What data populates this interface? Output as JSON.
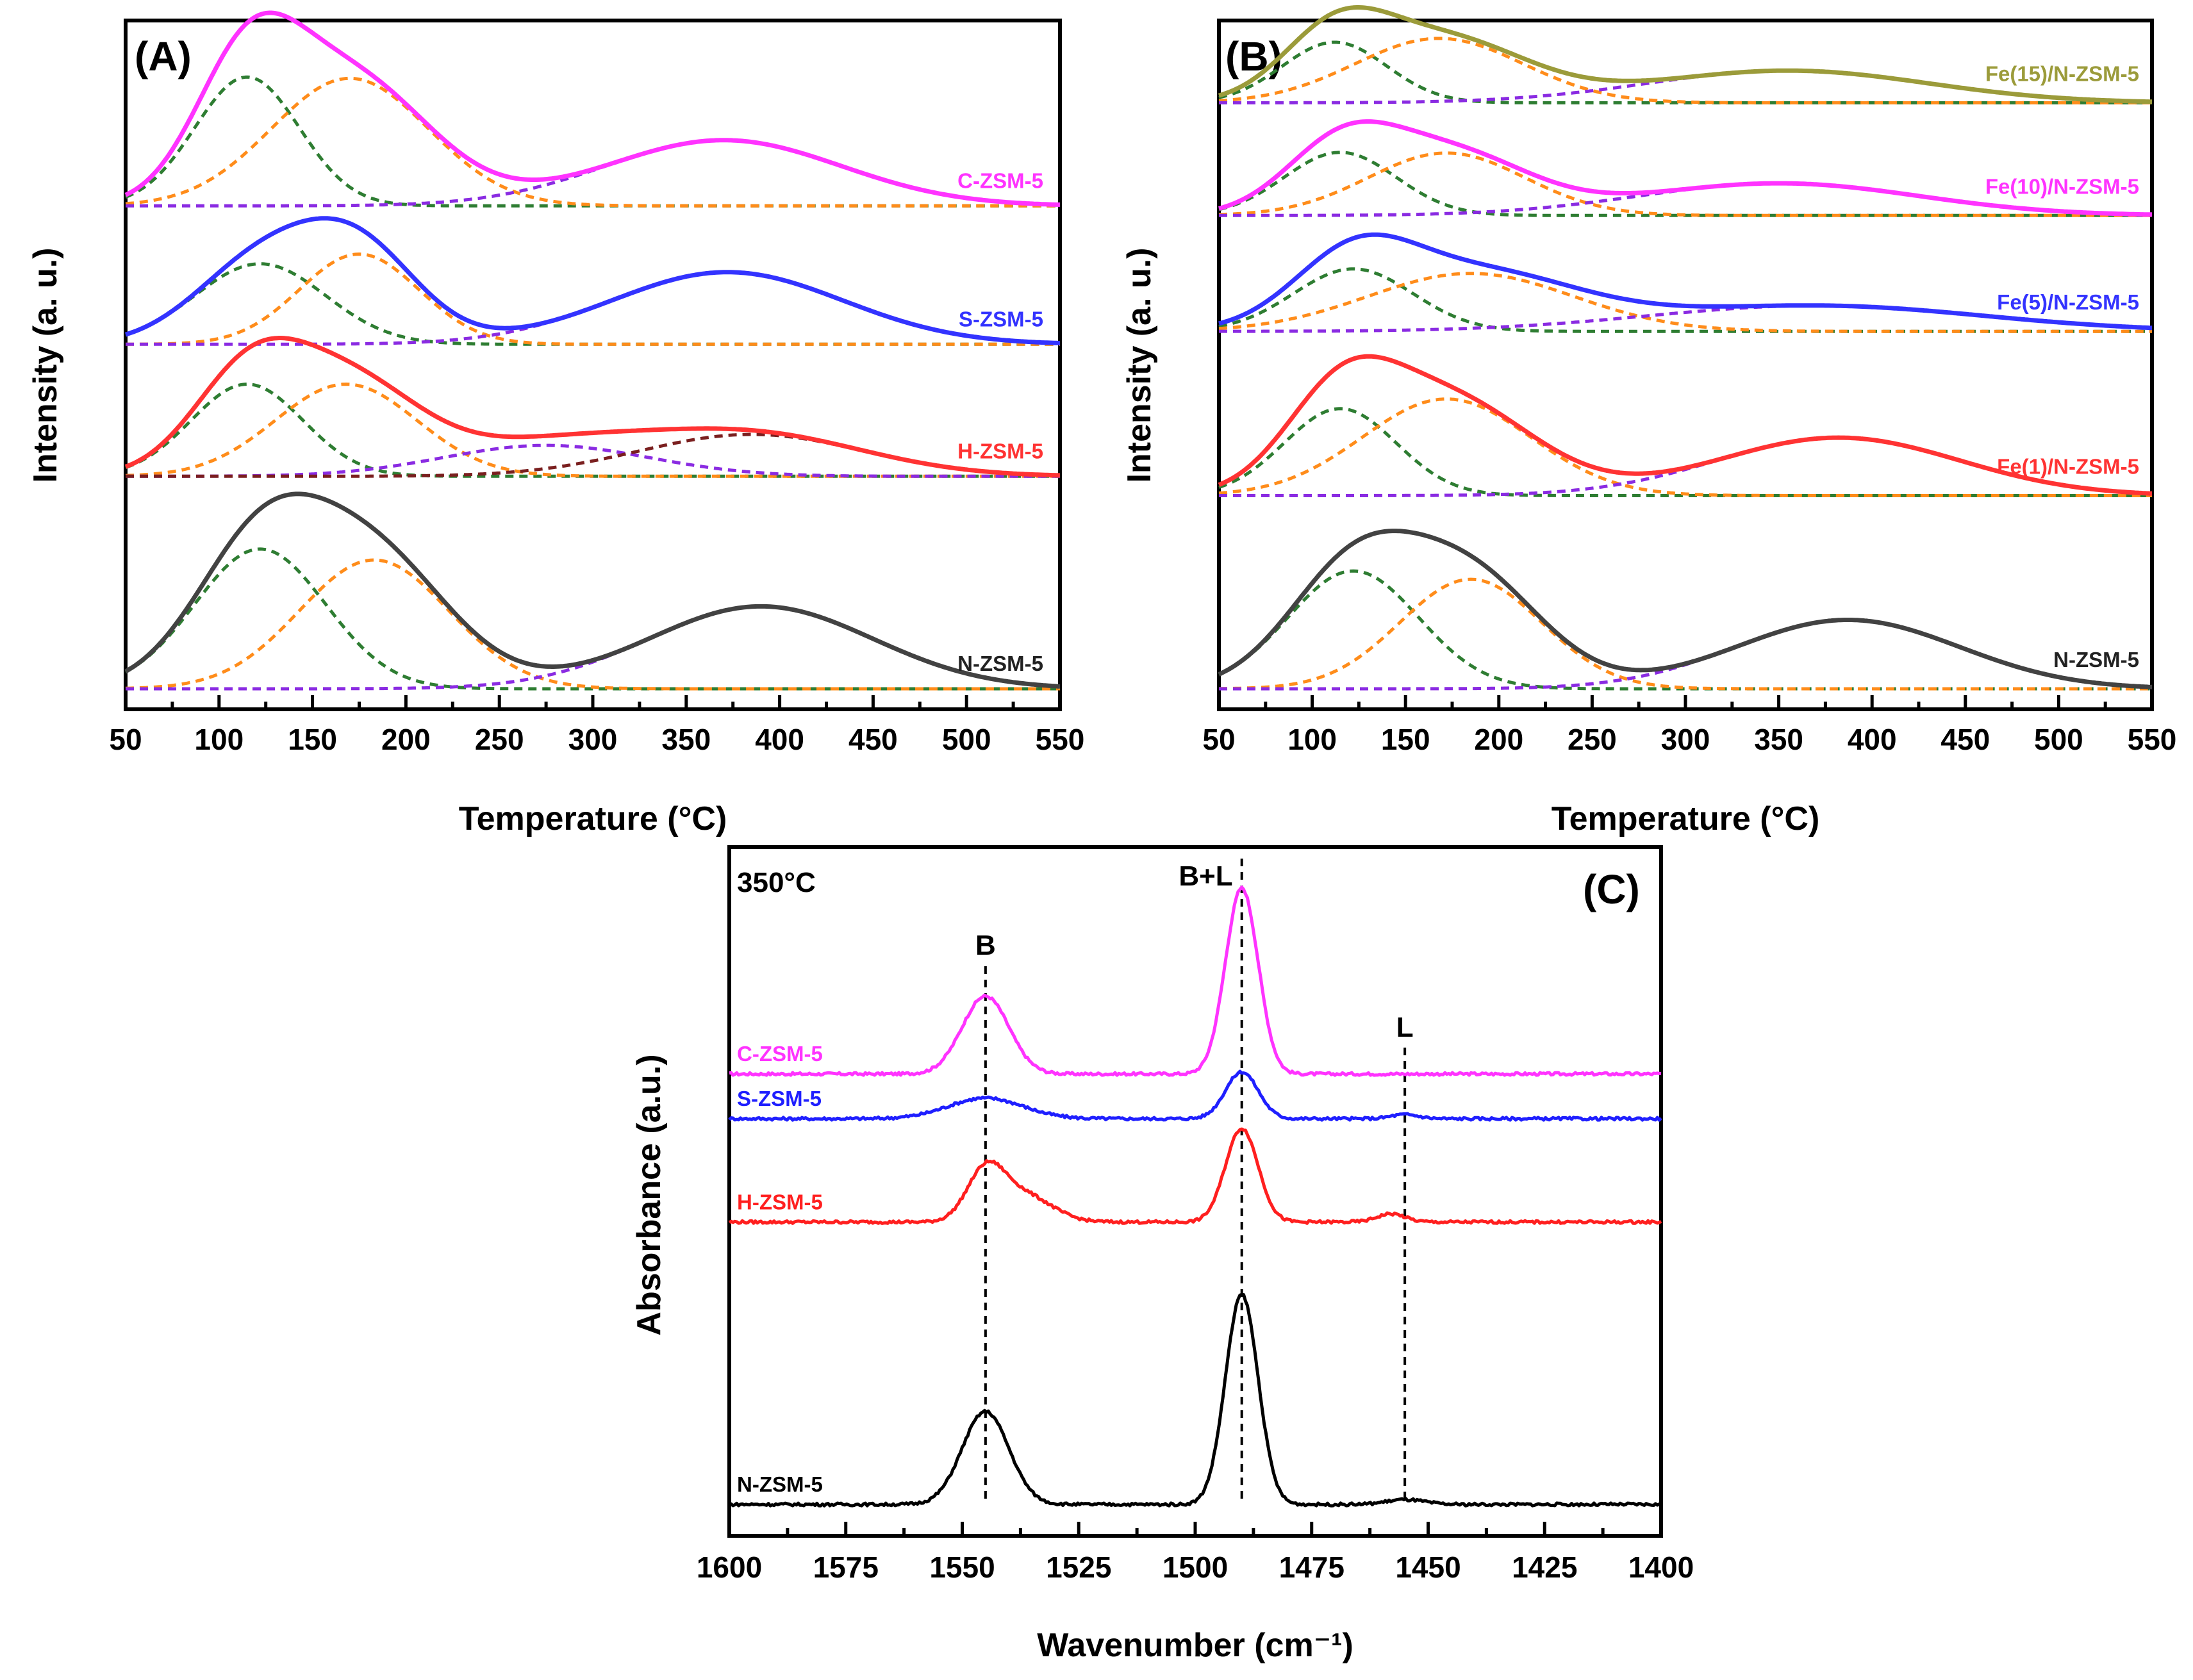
{
  "chart_data": [
    {
      "panel": "(A)",
      "type": "line",
      "xlabel": "Temperature (°C)",
      "ylabel": "Intensity (a. u.)",
      "xlim": [
        50,
        550
      ],
      "xticks": [
        "50",
        "100",
        "150",
        "200",
        "250",
        "300",
        "350",
        "400",
        "450",
        "500",
        "550"
      ],
      "series": [
        {
          "name": "C-ZSM-5",
          "color": "#ff33ff",
          "baseline": 0.75,
          "peaks": [
            {
              "center": 115,
              "height": 0.2,
              "width": 28,
              "color": "#2e7d32"
            },
            {
              "center": 170,
              "height": 0.198,
              "width": 42,
              "color": "#ff8c1a"
            },
            {
              "center": 370,
              "height": 0.102,
              "width": 63,
              "color": "#8a2be2"
            }
          ]
        },
        {
          "name": "S-ZSM-5",
          "color": "#3333ff",
          "baseline": 0.535,
          "peaks": [
            {
              "center": 122,
              "height": 0.125,
              "width": 35,
              "color": "#2e7d32"
            },
            {
              "center": 175,
              "height": 0.14,
              "width": 32,
              "color": "#ff8c1a"
            },
            {
              "center": 372,
              "height": 0.112,
              "width": 62,
              "color": "#8a2be2"
            }
          ]
        },
        {
          "name": "H-ZSM-5",
          "color": "#ff3333",
          "baseline": 0.33,
          "peaks": [
            {
              "center": 115,
              "height": 0.143,
              "width": 30,
              "color": "#2e7d32"
            },
            {
              "center": 168,
              "height": 0.143,
              "width": 38,
              "color": "#ff8c1a"
            },
            {
              "center": 275,
              "height": 0.048,
              "width": 55,
              "color": "#8a2be2"
            },
            {
              "center": 385,
              "height": 0.065,
              "width": 60,
              "color": "#7a1f1f"
            }
          ]
        },
        {
          "name": "N-ZSM-5",
          "color": "#424242",
          "baseline": 0.0,
          "peaks": [
            {
              "center": 122,
              "height": 0.217,
              "width": 35,
              "color": "#2e7d32"
            },
            {
              "center": 183,
              "height": 0.2,
              "width": 40,
              "color": "#ff8c1a"
            },
            {
              "center": 390,
              "height": 0.128,
              "width": 60,
              "color": "#8a2be2"
            }
          ]
        }
      ]
    },
    {
      "panel": "(B)",
      "type": "line",
      "xlabel": "Temperature (°C)",
      "ylabel": "Intensity (a. u.)",
      "xlim": [
        50,
        550
      ],
      "xticks": [
        "50",
        "100",
        "150",
        "200",
        "250",
        "300",
        "350",
        "400",
        "450",
        "500",
        "550"
      ],
      "series": [
        {
          "name": "Fe(15)/N-ZSM-5",
          "color": "#9b9b3a",
          "baseline": 0.91,
          "peaks": [
            {
              "center": 112,
              "height": 0.094,
              "width": 28,
              "color": "#2e7d32"
            },
            {
              "center": 168,
              "height": 0.1,
              "width": 45,
              "color": "#ff8c1a"
            },
            {
              "center": 355,
              "height": 0.05,
              "width": 75,
              "color": "#8a2be2"
            }
          ]
        },
        {
          "name": "Fe(10)/N-ZSM-5",
          "color": "#ff33ff",
          "baseline": 0.735,
          "peaks": [
            {
              "center": 115,
              "height": 0.098,
              "width": 30,
              "color": "#2e7d32"
            },
            {
              "center": 172,
              "height": 0.097,
              "width": 42,
              "color": "#ff8c1a"
            },
            {
              "center": 350,
              "height": 0.05,
              "width": 75,
              "color": "#8a2be2"
            }
          ]
        },
        {
          "name": "Fe(5)/N-ZSM-5",
          "color": "#3333ff",
          "baseline": 0.555,
          "peaks": [
            {
              "center": 122,
              "height": 0.097,
              "width": 32,
              "color": "#2e7d32"
            },
            {
              "center": 185,
              "height": 0.09,
              "width": 55,
              "color": "#ff8c1a"
            },
            {
              "center": 370,
              "height": 0.04,
              "width": 90,
              "color": "#8a2be2"
            }
          ]
        },
        {
          "name": "Fe(1)/N-ZSM-5",
          "color": "#ff3333",
          "baseline": 0.3,
          "peaks": [
            {
              "center": 115,
              "height": 0.135,
              "width": 30,
              "color": "#2e7d32"
            },
            {
              "center": 172,
              "height": 0.15,
              "width": 45,
              "color": "#ff8c1a"
            },
            {
              "center": 382,
              "height": 0.09,
              "width": 65,
              "color": "#8a2be2"
            }
          ]
        },
        {
          "name": "N-ZSM-5",
          "color": "#424242",
          "baseline": 0.0,
          "peaks": [
            {
              "center": 122,
              "height": 0.183,
              "width": 35,
              "color": "#2e7d32"
            },
            {
              "center": 185,
              "height": 0.17,
              "width": 38,
              "color": "#ff8c1a"
            },
            {
              "center": 387,
              "height": 0.107,
              "width": 60,
              "color": "#8a2be2"
            }
          ]
        }
      ]
    },
    {
      "panel": "(C)",
      "type": "line",
      "annotation": "350°C",
      "xlabel": "Wavenumber (cm⁻¹)",
      "ylabel": "Absorbance (a.u.)",
      "xlim": [
        1600,
        1400
      ],
      "xticks": [
        "1600",
        "1575",
        "1550",
        "1525",
        "1500",
        "1475",
        "1450",
        "1425",
        "1400"
      ],
      "band_labels": [
        {
          "label": "B",
          "wavenumber": 1545
        },
        {
          "label": "B+L",
          "wavenumber": 1490
        },
        {
          "label": "L",
          "wavenumber": 1455
        }
      ],
      "series": [
        {
          "name": "C-ZSM-5",
          "color": "#ff33ff",
          "baseline": 0.625,
          "peaks": [
            {
              "center": 1545,
              "height": 0.113,
              "width": 5
            },
            {
              "center": 1490,
              "height": 0.27,
              "width": 3.5
            }
          ]
        },
        {
          "name": "S-ZSM-5",
          "color": "#1f1fff",
          "baseline": 0.56,
          "peaks": [
            {
              "center": 1545,
              "height": 0.03,
              "width": 8
            },
            {
              "center": 1490,
              "height": 0.068,
              "width": 3.5
            },
            {
              "center": 1455,
              "height": 0.006,
              "width": 3
            }
          ]
        },
        {
          "name": "H-ZSM-5",
          "color": "#ff1f1f",
          "baseline": 0.41,
          "peaks": [
            {
              "center": 1545,
              "height": 0.07,
              "width": 4
            },
            {
              "center": 1537,
              "height": 0.04,
              "width": 6
            },
            {
              "center": 1490,
              "height": 0.136,
              "width": 3.5
            },
            {
              "center": 1458,
              "height": 0.012,
              "width": 3
            }
          ]
        },
        {
          "name": "N-ZSM-5",
          "color": "#000000",
          "baseline": 0.0,
          "peaks": [
            {
              "center": 1545,
              "height": 0.135,
              "width": 5
            },
            {
              "center": 1490,
              "height": 0.305,
              "width": 3.5
            },
            {
              "center": 1455,
              "height": 0.007,
              "width": 4
            }
          ]
        }
      ]
    }
  ]
}
